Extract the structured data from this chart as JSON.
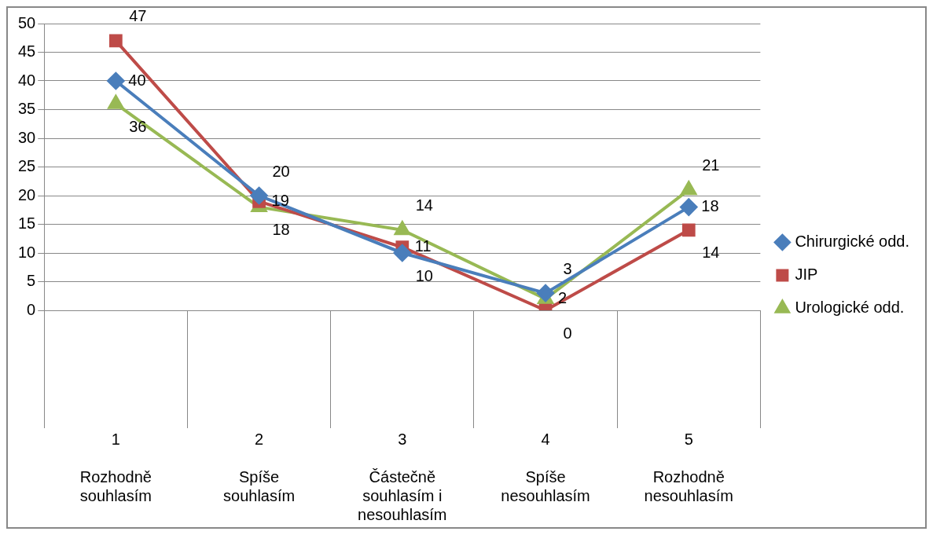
{
  "chart_data": {
    "type": "line",
    "categories": [
      "1\nRozhodně souhlasím",
      "2\nSpíše souhlasím",
      "3\nČástečně souhlasím i nesouhlasím",
      "4\nSpíše nesouhlasím",
      "5\nRozhodně nesouhlasím"
    ],
    "series": [
      {
        "name": "Chirurgické odd.",
        "color": "#4a7ebb",
        "marker": "diamond",
        "values": [
          40,
          20,
          10,
          3,
          18
        ]
      },
      {
        "name": "JIP",
        "color": "#be4b48",
        "marker": "square",
        "values": [
          47,
          19,
          11,
          0,
          14
        ]
      },
      {
        "name": "Urologické odd.",
        "color": "#98b954",
        "marker": "triangle",
        "values": [
          36,
          18,
          14,
          2,
          21
        ]
      }
    ],
    "ylim": [
      0,
      50
    ],
    "yticks": [
      0,
      5,
      10,
      15,
      20,
      25,
      30,
      35,
      40,
      45,
      50
    ],
    "grid": "y",
    "legend": "right",
    "data_labels": true,
    "line_style": "solid"
  }
}
